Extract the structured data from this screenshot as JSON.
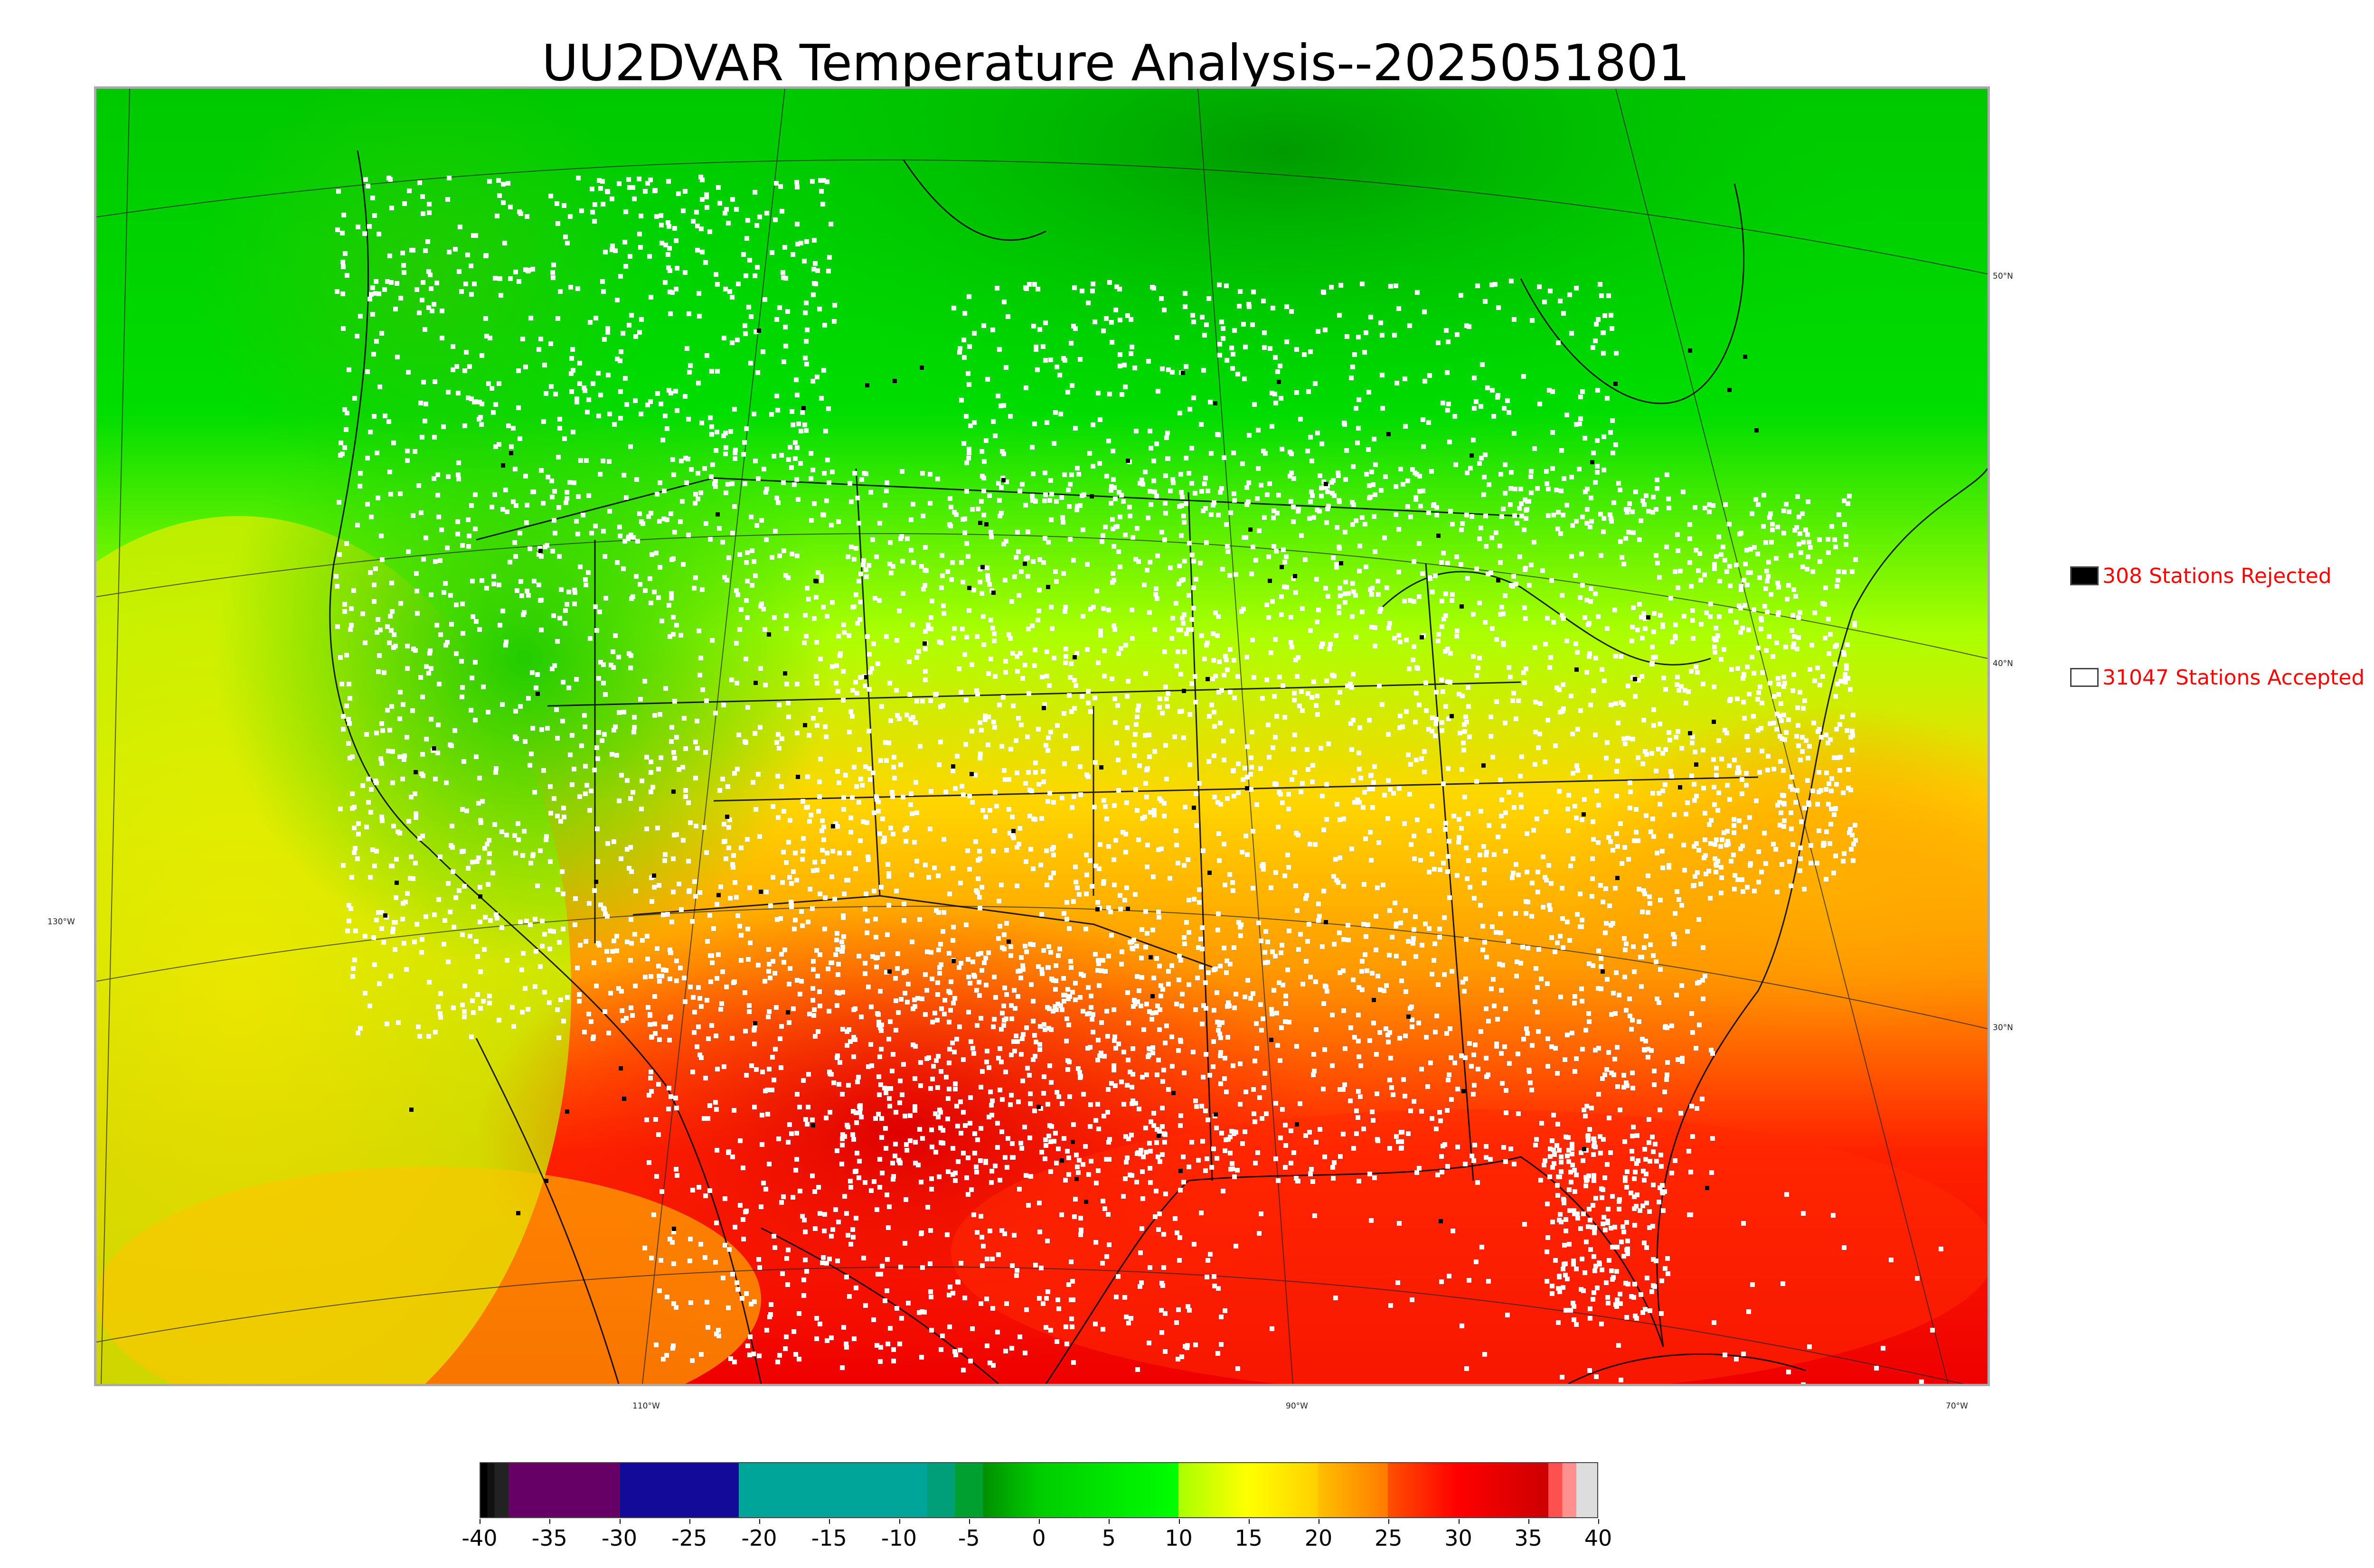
{
  "title": "UU2DVAR Temperature Analysis--2025051801",
  "legend": {
    "rejected": {
      "label": "308 Stations Rejected",
      "swatch_color": "#000000"
    },
    "accepted": {
      "label": "31047 Stations Accepted",
      "swatch_color": "#ffffff"
    },
    "text_color": "#ff0000"
  },
  "graticule": {
    "latitudes": [
      "50°N",
      "40°N",
      "30°N"
    ],
    "longitudes": [
      "130°W",
      "110°W",
      "90°W",
      "70°W"
    ]
  },
  "colorbar": {
    "ticks": [
      "-40",
      "-35",
      "-30",
      "-25",
      "-20",
      "-15",
      "-10",
      "-5",
      "0",
      "5",
      "10",
      "15",
      "20",
      "25",
      "30",
      "35",
      "40"
    ],
    "range": [
      -40,
      40
    ],
    "segments": [
      {
        "from": -40,
        "to": -39.5,
        "color": "#000000"
      },
      {
        "from": -39.5,
        "to": -39,
        "color": "#111111"
      },
      {
        "from": -39,
        "to": -38,
        "color": "#222222"
      },
      {
        "from": -38,
        "to": -30,
        "color": "#660066"
      },
      {
        "from": -30,
        "to": -21.5,
        "color": "#140a99"
      },
      {
        "from": -21.5,
        "to": -8,
        "color": "#00a59a"
      },
      {
        "from": -8,
        "to": -6,
        "color": "#009f7a"
      },
      {
        "from": -6,
        "to": -4,
        "color": "#00a030"
      },
      {
        "from": -4,
        "to": 0,
        "color": "#009000",
        "to_color": "#00cc00"
      },
      {
        "from": 0,
        "to": 10,
        "color": "#00cc00",
        "to_color": "#00ff00"
      },
      {
        "from": 10,
        "to": 15,
        "color": "#aaff00",
        "to_color": "#ffff00"
      },
      {
        "from": 15,
        "to": 20,
        "color": "#ffff00",
        "to_color": "#ffd000"
      },
      {
        "from": 20,
        "to": 25,
        "color": "#ffc000",
        "to_color": "#ff7a00"
      },
      {
        "from": 25,
        "to": 30,
        "color": "#ff5000",
        "to_color": "#ff0000"
      },
      {
        "from": 30,
        "to": 36.5,
        "color": "#ff0000",
        "to_color": "#cc0000"
      },
      {
        "from": 36.5,
        "to": 37.5,
        "color": "#ff5050"
      },
      {
        "from": 37.5,
        "to": 38.5,
        "color": "#ff9090"
      },
      {
        "from": 38.5,
        "to": 40,
        "color": "#dddddd"
      }
    ]
  },
  "map": {
    "field_colors": {
      "cold_north": "#00b000",
      "cool": "#00e000",
      "mild": "#7fff00",
      "warm_mid": "#ffee00",
      "warm": "#ffaa00",
      "hot": "#ff3300",
      "very_hot": "#e00000",
      "ocean_pacific": "#d8e800",
      "ocean_atlantic_south": "#ff5a00",
      "coast_line": "#000000",
      "station_accepted": "#ffffff",
      "station_rejected": "#000000"
    }
  }
}
